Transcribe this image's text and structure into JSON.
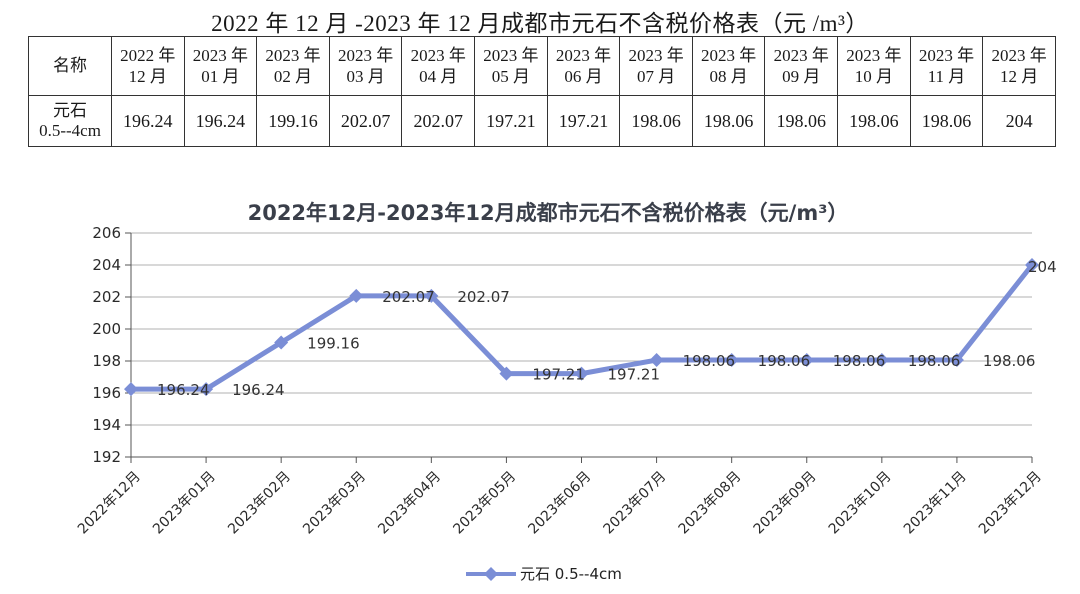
{
  "page": {
    "title": "2022 年 12 月 -2023 年 12 月成都市元石不含税价格表（元 /m³）"
  },
  "table": {
    "header_label": "名称",
    "month_headers": [
      [
        "2022 年",
        "12 月"
      ],
      [
        "2023 年",
        "01 月"
      ],
      [
        "2023 年",
        "02 月"
      ],
      [
        "2023 年",
        "03 月"
      ],
      [
        "2023 年",
        "04 月"
      ],
      [
        "2023 年",
        "05 月"
      ],
      [
        "2023 年",
        "06 月"
      ],
      [
        "2023 年",
        "07 月"
      ],
      [
        "2023 年",
        "08 月"
      ],
      [
        "2023 年",
        "09 月"
      ],
      [
        "2023 年",
        "10 月"
      ],
      [
        "2023 年",
        "11 月"
      ],
      [
        "2023 年",
        "12 月"
      ]
    ],
    "row_label": [
      "元石",
      "0.5--4cm"
    ],
    "row_values": [
      "196.24",
      "196.24",
      "199.16",
      "202.07",
      "202.07",
      "197.21",
      "197.21",
      "198.06",
      "198.06",
      "198.06",
      "198.06",
      "198.06",
      "204"
    ]
  },
  "chart_data": {
    "type": "line",
    "title": "2022年12月-2023年12月成都市元石不含税价格表（元/m³）",
    "categories": [
      "2022年12月",
      "2023年01月",
      "2023年02月",
      "2023年03月",
      "2023年04月",
      "2023年05月",
      "2023年06月",
      "2023年07月",
      "2023年08月",
      "2023年09月",
      "2023年10月",
      "2023年11月",
      "2023年12月"
    ],
    "series": [
      {
        "name": "元石 0.5--4cm",
        "values": [
          196.24,
          196.24,
          199.16,
          202.07,
          202.07,
          197.21,
          197.21,
          198.06,
          198.06,
          198.06,
          198.06,
          198.06,
          204
        ],
        "labels": [
          "196.24",
          "196.24",
          "199.16",
          "202.07",
          "202.07",
          "197.21",
          "197.21",
          "198.06",
          "198.06",
          "198.06",
          "198.06",
          "198.06",
          "204"
        ]
      }
    ],
    "ylim": [
      192,
      206
    ],
    "yticks": [
      192,
      194,
      196,
      198,
      200,
      202,
      204,
      206
    ],
    "grid": true,
    "legend_position": "bottom",
    "line_color": "#7b8ed6"
  }
}
